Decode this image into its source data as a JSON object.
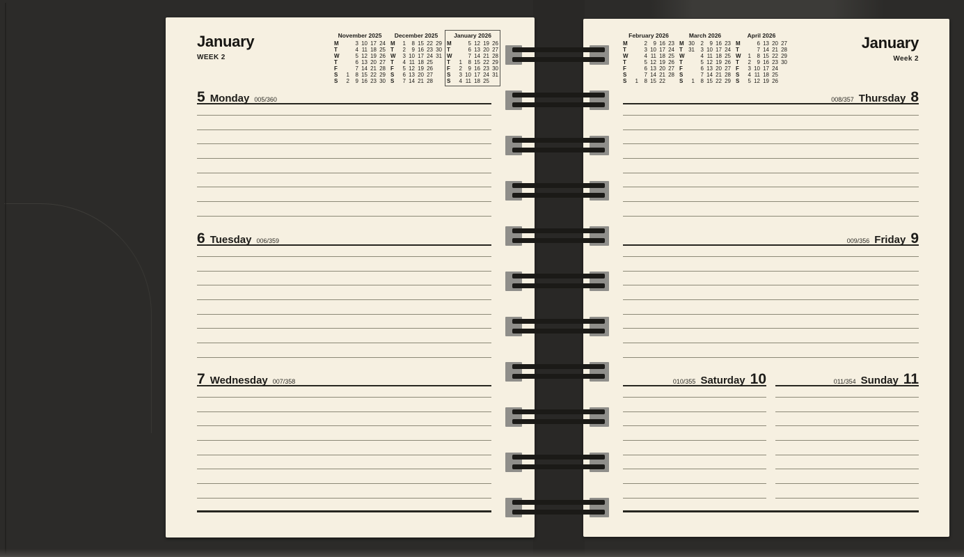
{
  "palette": {
    "page_cream": "#f6f0e1",
    "cover_dark": "#2c2b29",
    "ink": "#1d1c19",
    "rule_line": "#8b8876",
    "heavy_rule": "#26251f",
    "binding_wire": "#1b1a17",
    "punch_hole_gray": "#8f8e8a"
  },
  "binding": {
    "ring_pairs": 11
  },
  "left_page": {
    "month": "January",
    "week_label": "WEEK 2",
    "mini_calendars": [
      {
        "title": "November 2025",
        "boxed": false,
        "rows": [
          {
            "d": "M",
            "cells": [
              "",
              "3",
              "10",
              "17",
              "24"
            ]
          },
          {
            "d": "T",
            "cells": [
              "",
              "4",
              "11",
              "18",
              "25"
            ]
          },
          {
            "d": "W",
            "cells": [
              "",
              "5",
              "12",
              "19",
              "26"
            ]
          },
          {
            "d": "T",
            "cells": [
              "",
              "6",
              "13",
              "20",
              "27"
            ]
          },
          {
            "d": "F",
            "cells": [
              "",
              "7",
              "14",
              "21",
              "28"
            ]
          },
          {
            "d": "S",
            "cells": [
              "1",
              "8",
              "15",
              "22",
              "29"
            ]
          },
          {
            "d": "S",
            "cells": [
              "2",
              "9",
              "16",
              "23",
              "30"
            ]
          }
        ]
      },
      {
        "title": "December 2025",
        "boxed": false,
        "rows": [
          {
            "d": "M",
            "cells": [
              "1",
              "8",
              "15",
              "22",
              "29"
            ]
          },
          {
            "d": "T",
            "cells": [
              "2",
              "9",
              "16",
              "23",
              "30"
            ]
          },
          {
            "d": "W",
            "cells": [
              "3",
              "10",
              "17",
              "24",
              "31"
            ]
          },
          {
            "d": "T",
            "cells": [
              "4",
              "11",
              "18",
              "25",
              ""
            ]
          },
          {
            "d": "F",
            "cells": [
              "5",
              "12",
              "19",
              "26",
              ""
            ]
          },
          {
            "d": "S",
            "cells": [
              "6",
              "13",
              "20",
              "27",
              ""
            ]
          },
          {
            "d": "S",
            "cells": [
              "7",
              "14",
              "21",
              "28",
              ""
            ]
          }
        ]
      },
      {
        "title": "January 2026",
        "boxed": true,
        "rows": [
          {
            "d": "M",
            "cells": [
              "",
              "5",
              "12",
              "19",
              "26"
            ]
          },
          {
            "d": "T",
            "cells": [
              "",
              "6",
              "13",
              "20",
              "27"
            ]
          },
          {
            "d": "W",
            "cells": [
              "",
              "7",
              "14",
              "21",
              "28"
            ]
          },
          {
            "d": "T",
            "cells": [
              "1",
              "8",
              "15",
              "22",
              "29"
            ]
          },
          {
            "d": "F",
            "cells": [
              "2",
              "9",
              "16",
              "23",
              "30"
            ]
          },
          {
            "d": "S",
            "cells": [
              "3",
              "10",
              "17",
              "24",
              "31"
            ]
          },
          {
            "d": "S",
            "cells": [
              "4",
              "11",
              "18",
              "25",
              ""
            ]
          }
        ]
      }
    ],
    "sections": [
      {
        "type": "full",
        "align": "left",
        "day_number": "5",
        "day_name": "Monday",
        "day_count": "005/360",
        "ruled_lines": 8,
        "closing_rule": false
      },
      {
        "type": "full",
        "align": "left",
        "day_number": "6",
        "day_name": "Tuesday",
        "day_count": "006/359",
        "ruled_lines": 8,
        "closing_rule": false
      },
      {
        "type": "full",
        "align": "left",
        "day_number": "7",
        "day_name": "Wednesday",
        "day_count": "007/358",
        "ruled_lines": 8,
        "closing_rule": true
      }
    ]
  },
  "right_page": {
    "month": "January",
    "week_label": "Week 2",
    "mini_calendars": [
      {
        "title": "February 2026",
        "boxed": false,
        "rows": [
          {
            "d": "M",
            "cells": [
              "",
              "2",
              "9",
              "16",
              "23"
            ]
          },
          {
            "d": "T",
            "cells": [
              "",
              "3",
              "10",
              "17",
              "24"
            ]
          },
          {
            "d": "W",
            "cells": [
              "",
              "4",
              "11",
              "18",
              "25"
            ]
          },
          {
            "d": "T",
            "cells": [
              "",
              "5",
              "12",
              "19",
              "26"
            ]
          },
          {
            "d": "F",
            "cells": [
              "",
              "6",
              "13",
              "20",
              "27"
            ]
          },
          {
            "d": "S",
            "cells": [
              "",
              "7",
              "14",
              "21",
              "28"
            ]
          },
          {
            "d": "S",
            "cells": [
              "1",
              "8",
              "15",
              "22",
              ""
            ]
          }
        ]
      },
      {
        "title": "March 2026",
        "boxed": false,
        "rows": [
          {
            "d": "M",
            "cells": [
              "30",
              "2",
              "9",
              "16",
              "23"
            ]
          },
          {
            "d": "T",
            "cells": [
              "31",
              "3",
              "10",
              "17",
              "24"
            ]
          },
          {
            "d": "W",
            "cells": [
              "",
              "4",
              "11",
              "18",
              "25"
            ]
          },
          {
            "d": "T",
            "cells": [
              "",
              "5",
              "12",
              "19",
              "26"
            ]
          },
          {
            "d": "F",
            "cells": [
              "",
              "6",
              "13",
              "20",
              "27"
            ]
          },
          {
            "d": "S",
            "cells": [
              "",
              "7",
              "14",
              "21",
              "28"
            ]
          },
          {
            "d": "S",
            "cells": [
              "1",
              "8",
              "15",
              "22",
              "29"
            ]
          }
        ]
      },
      {
        "title": "April 2026",
        "boxed": false,
        "rows": [
          {
            "d": "M",
            "cells": [
              "",
              "6",
              "13",
              "20",
              "27"
            ]
          },
          {
            "d": "T",
            "cells": [
              "",
              "7",
              "14",
              "21",
              "28"
            ]
          },
          {
            "d": "W",
            "cells": [
              "1",
              "8",
              "15",
              "22",
              "29"
            ]
          },
          {
            "d": "T",
            "cells": [
              "2",
              "9",
              "16",
              "23",
              "30"
            ]
          },
          {
            "d": "F",
            "cells": [
              "3",
              "10",
              "17",
              "24",
              ""
            ]
          },
          {
            "d": "S",
            "cells": [
              "4",
              "11",
              "18",
              "25",
              ""
            ]
          },
          {
            "d": "S",
            "cells": [
              "5",
              "12",
              "19",
              "26",
              ""
            ]
          }
        ]
      }
    ],
    "sections": [
      {
        "type": "full",
        "align": "right",
        "day_number": "8",
        "day_name": "Thursday",
        "day_count": "008/357",
        "ruled_lines": 8,
        "closing_rule": false
      },
      {
        "type": "full",
        "align": "right",
        "day_number": "9",
        "day_name": "Friday",
        "day_count": "009/356",
        "ruled_lines": 8,
        "closing_rule": false
      },
      {
        "type": "split",
        "ruled_lines": 8,
        "closing_rule": true,
        "columns": [
          {
            "day_number": "10",
            "day_name": "Saturday",
            "day_count": "010/355"
          },
          {
            "day_number": "11",
            "day_name": "Sunday",
            "day_count": "011/354"
          }
        ]
      }
    ]
  }
}
